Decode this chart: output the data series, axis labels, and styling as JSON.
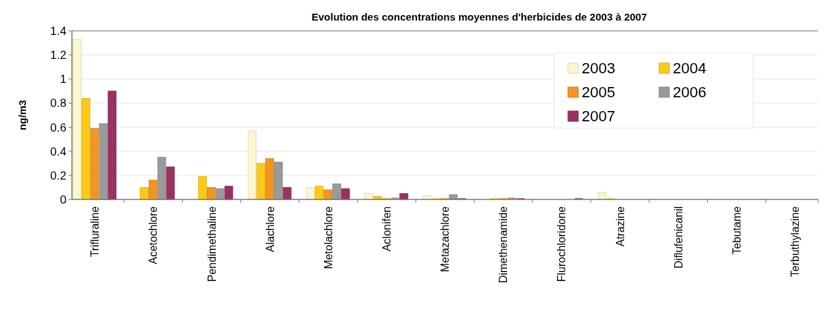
{
  "chart_data": {
    "type": "bar",
    "title": "Evolution des concentrations moyennes d'herbicides de 2003 à 2007",
    "ylabel": "ng/m3",
    "categories": [
      "Trifluraline",
      "Acetochlore",
      "Pendimethaline",
      "Alachlore",
      "Metolachlore",
      "Aclonifen",
      "Metazachlore",
      "Dimethenamide",
      "Flurochloridone",
      "Atrazine",
      "Diflufenicanil",
      "Tebutame",
      "Terbuthylazine"
    ],
    "series": [
      {
        "name": "2003",
        "color": "#fbf6cf",
        "values": [
          1.33,
          0,
          0,
          0.57,
          0.1,
          0.05,
          0.03,
          0,
          0,
          0.06,
          0,
          0,
          0
        ]
      },
      {
        "name": "2004",
        "color": "#fcc917",
        "values": [
          0.84,
          0.1,
          0.19,
          0.3,
          0.11,
          0.025,
          0.01,
          0.01,
          0,
          0.01,
          0,
          0,
          0
        ]
      },
      {
        "name": "2005",
        "color": "#f19620",
        "values": [
          0.59,
          0.16,
          0.1,
          0.34,
          0.08,
          0.01,
          0.01,
          0.01,
          0,
          0,
          0,
          0,
          0
        ]
      },
      {
        "name": "2006",
        "color": "#9a9a9a",
        "values": [
          0.63,
          0.35,
          0.09,
          0.31,
          0.13,
          0.015,
          0.04,
          0.015,
          0,
          0,
          0,
          0,
          0
        ]
      },
      {
        "name": "2007",
        "color": "#9b3163",
        "values": [
          0.9,
          0.27,
          0.11,
          0.1,
          0.09,
          0.05,
          0.01,
          0.01,
          0.01,
          0,
          0,
          0,
          0
        ]
      }
    ],
    "ylim": [
      0,
      1.4
    ],
    "yticks": [
      0,
      0.2,
      0.4,
      0.6,
      0.8,
      1,
      1.2,
      1.4
    ],
    "grid": "y",
    "legend": "top right"
  }
}
